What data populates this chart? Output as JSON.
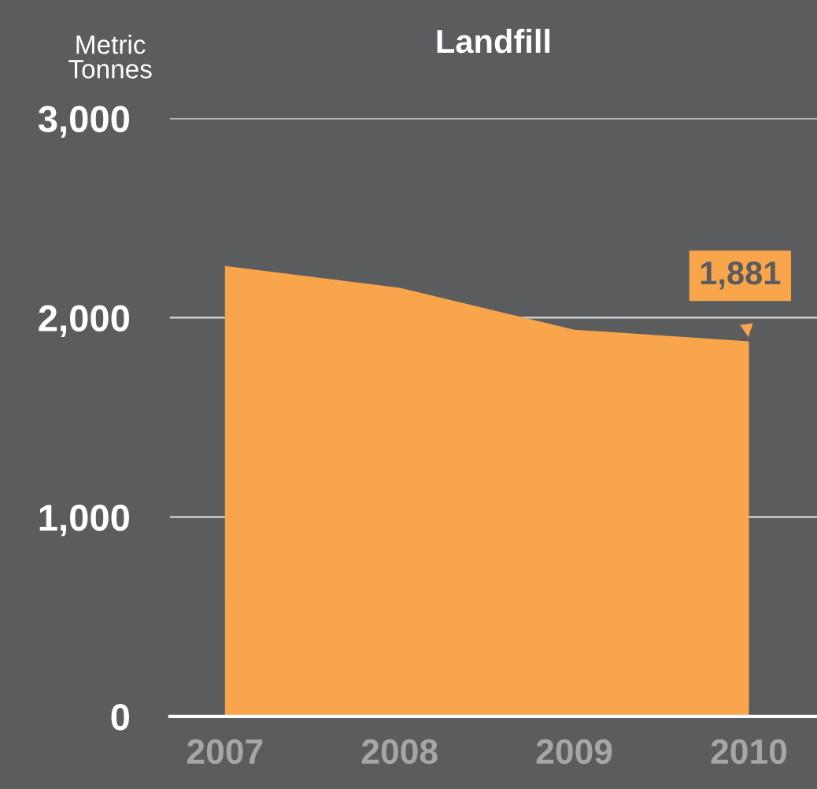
{
  "chart_data": {
    "type": "area",
    "title": "Landfill",
    "ylabel": "Metric\nTonnes",
    "categories": [
      "2007",
      "2008",
      "2009",
      "2010"
    ],
    "values": [
      2260,
      2150,
      1940,
      1881
    ],
    "color": "#f9a54b",
    "ylim": [
      0,
      3000
    ],
    "yticks": [
      {
        "value": 0,
        "label": "0"
      },
      {
        "value": 1000,
        "label": "1,000"
      },
      {
        "value": 2000,
        "label": "2,000"
      },
      {
        "value": 3000,
        "label": "3,000"
      }
    ],
    "grid": "y",
    "annotations": [
      {
        "text": "1,881",
        "x": "2010",
        "y": 1881
      }
    ]
  }
}
